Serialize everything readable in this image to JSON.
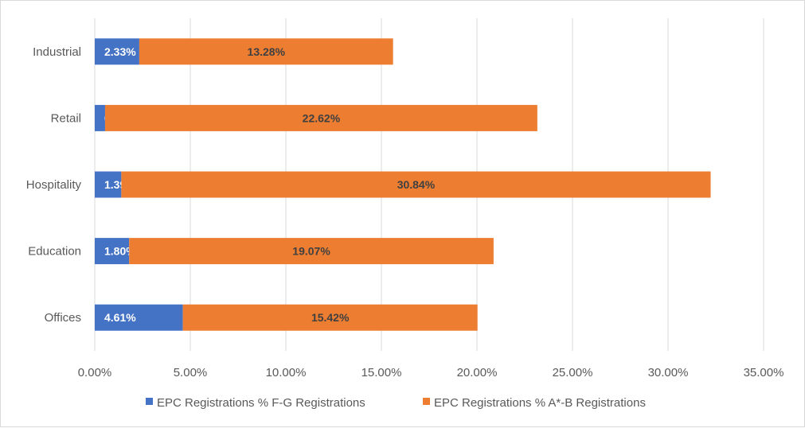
{
  "chart_data": {
    "type": "bar",
    "orientation": "horizontal",
    "stacked": true,
    "categories": [
      "Industrial",
      "Retail",
      "Hospitality",
      "Education",
      "Offices"
    ],
    "series": [
      {
        "name": "EPC Registrations % F-G Registrations",
        "color": "#4472c4",
        "values": [
          2.33,
          0.54,
          1.39,
          1.8,
          4.61
        ],
        "labels": [
          "2.33%",
          "0.54%",
          "1.39%",
          "1.80%",
          "4.61%"
        ],
        "label_color": "#ffffff"
      },
      {
        "name": "EPC Registrations % A*-B Registrations",
        "color": "#ed7d31",
        "values": [
          13.28,
          22.62,
          30.84,
          19.07,
          15.42
        ],
        "labels": [
          "13.28%",
          "22.62%",
          "30.84%",
          "19.07%",
          "15.42%"
        ],
        "label_color": "#404040"
      }
    ],
    "xlim": [
      0,
      35
    ],
    "xticks": [
      0,
      5,
      10,
      15,
      20,
      25,
      30,
      35
    ],
    "xtick_labels": [
      "0.00%",
      "5.00%",
      "10.00%",
      "15.00%",
      "20.00%",
      "25.00%",
      "30.00%",
      "35.00%"
    ],
    "grid": true,
    "legend": "bottom",
    "title": "",
    "xlabel": "",
    "ylabel": ""
  }
}
